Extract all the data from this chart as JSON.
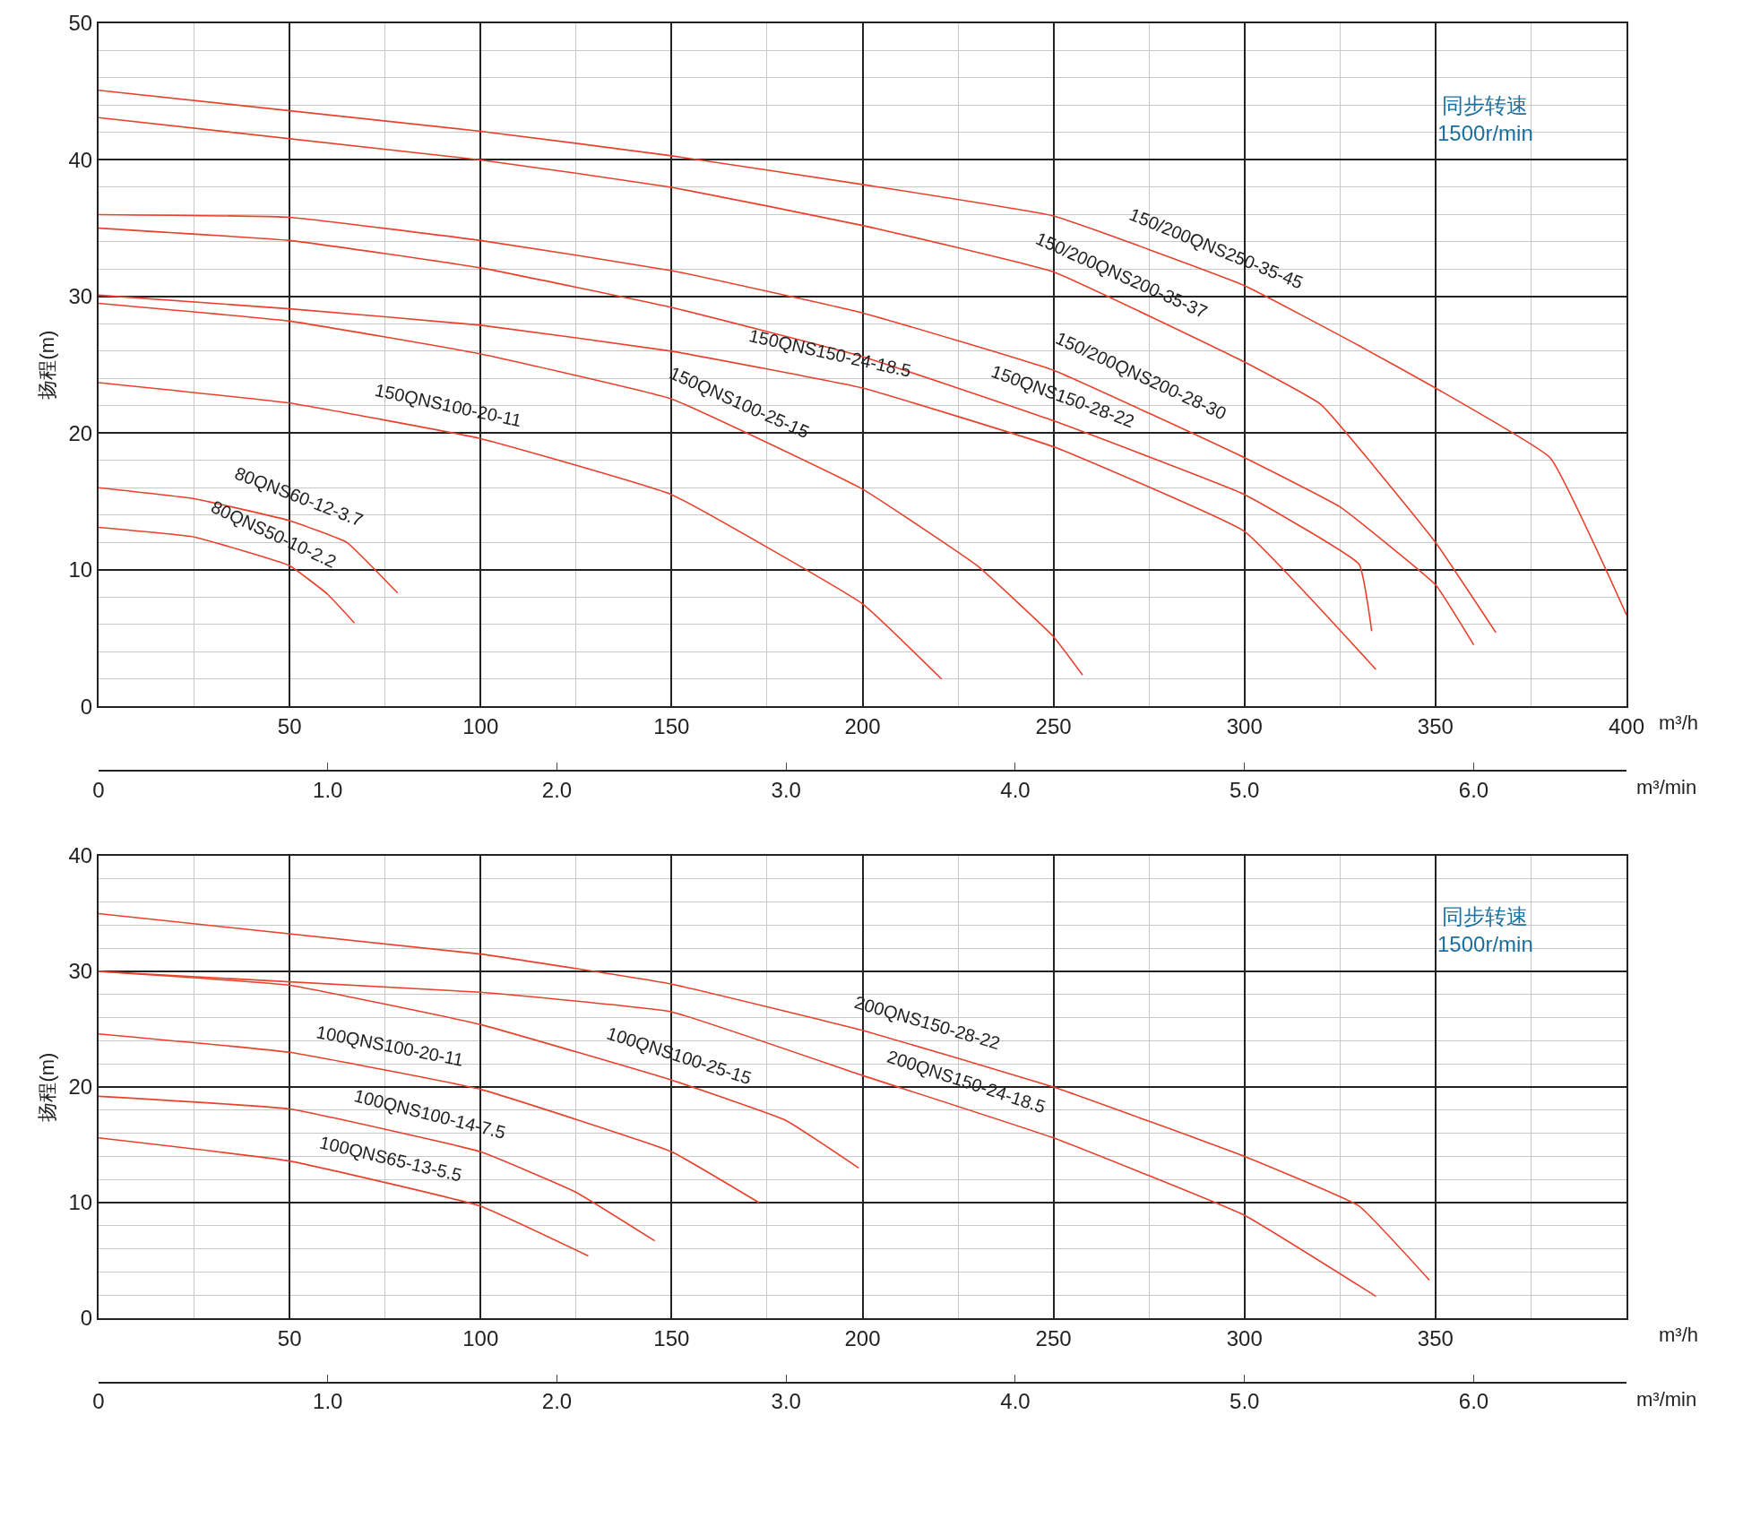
{
  "chart_data": [
    {
      "type": "line",
      "xlabel": "m³/h",
      "x2label": "m³/min",
      "ylabel": "扬程(m)",
      "xlim": [
        0,
        400
      ],
      "xticks": [
        50,
        100,
        150,
        200,
        250,
        300,
        350,
        400
      ],
      "x2lim": [
        0,
        6.6667
      ],
      "x2ticks": [
        0,
        {
          "value": 1,
          "label": "1.0"
        },
        {
          "value": 2,
          "label": "2.0"
        },
        {
          "value": 3,
          "label": "3.0"
        },
        {
          "value": 4,
          "label": "4.0"
        },
        {
          "value": 5,
          "label": "5.0"
        },
        {
          "value": 6,
          "label": "6.0"
        }
      ],
      "ylim": [
        0,
        50
      ],
      "yticks": [
        0,
        10,
        20,
        30,
        40,
        50
      ],
      "grid": true,
      "marker": "none",
      "line_style": "solid",
      "series": [
        {
          "color": "#e8412c",
          "x": [
            0,
            100,
            150,
            200,
            250,
            300,
            330,
            350,
            380,
            400
          ],
          "values": [
            45.1,
            42.1,
            40.3,
            38.2,
            35.9,
            30.8,
            26.4,
            23.3,
            18.2,
            6.7
          ]
        },
        {
          "color": "#e8412c",
          "x": [
            0,
            100,
            150,
            200,
            250,
            300,
            320,
            350,
            365.8
          ],
          "values": [
            43.1,
            40.0,
            38.0,
            35.2,
            31.8,
            25.2,
            22.1,
            12.0,
            5.4
          ]
        },
        {
          "color": "#e8412c",
          "x": [
            0,
            50,
            100,
            150,
            200,
            250,
            300,
            325,
            350,
            360
          ],
          "values": [
            36.0,
            35.8,
            34.1,
            31.9,
            28.8,
            24.6,
            18.2,
            14.6,
            8.9,
            4.5
          ]
        },
        {
          "color": "#e8412c",
          "x": [
            0,
            50,
            100,
            150,
            200,
            250,
            300,
            330,
            333.3
          ],
          "values": [
            35.0,
            34.1,
            32.1,
            29.2,
            25.6,
            20.9,
            15.5,
            10.4,
            5.5
          ]
        },
        {
          "color": "#e8412c",
          "x": [
            0,
            50,
            100,
            150,
            200,
            250,
            300,
            334.4
          ],
          "values": [
            30.1,
            29.1,
            27.9,
            26.0,
            23.3,
            19.0,
            12.8,
            2.7
          ]
        },
        {
          "color": "#e8412c",
          "x": [
            0,
            50,
            100,
            150,
            200,
            230,
            250,
            257.6
          ],
          "values": [
            29.5,
            28.2,
            25.8,
            22.5,
            15.9,
            10.3,
            5.1,
            2.3
          ]
        },
        {
          "color": "#e8412c",
          "x": [
            0,
            50,
            100,
            150,
            200,
            220.7
          ],
          "values": [
            23.7,
            22.2,
            19.6,
            15.5,
            7.5,
            2.0
          ]
        },
        {
          "color": "#e8412c",
          "x": [
            0,
            25,
            50,
            65,
            78.3
          ],
          "values": [
            16.0,
            15.2,
            13.6,
            12.0,
            8.3
          ]
        },
        {
          "color": "#e8412c",
          "x": [
            0,
            25,
            50,
            60,
            67
          ],
          "values": [
            13.1,
            12.4,
            10.3,
            8.2,
            6.1
          ]
        }
      ],
      "annotations": [
        {
          "text": "150/200QNS250-35-45",
          "x": 290,
          "y": 31.8
        },
        {
          "text": "150/200QNS200-35-37",
          "x": 265,
          "y": 29.8
        },
        {
          "text": "150/200QNS200-28-30",
          "x": 270,
          "y": 22.5
        },
        {
          "text": "150QNS150-28-22",
          "x": 250,
          "y": 20.9
        },
        {
          "text": "150QNS150-24-18.5",
          "x": 190,
          "y": 24.0
        },
        {
          "text": "150QNS100-25-15",
          "x": 165,
          "y": 20.5
        },
        {
          "text": "150QNS100-20-11",
          "x": 90,
          "y": 20.2
        },
        {
          "text": "80QNS60-12-3.7",
          "x": 50,
          "y": 13.6
        },
        {
          "text": "80QNS50-10-2.2",
          "x": 43,
          "y": 10.9
        },
        "同步转速\n1500r/min"
      ]
    },
    {
      "type": "line",
      "xlabel": "m³/h",
      "x2label": "m³/min",
      "ylabel": "扬程(m)",
      "xlim": [
        0,
        400
      ],
      "xticks": [
        50,
        100,
        150,
        200,
        250,
        300,
        350
      ],
      "x2lim": [
        0,
        6.6667
      ],
      "x2ticks": [
        0,
        {
          "value": 1,
          "label": "1.0"
        },
        {
          "value": 2,
          "label": "2.0"
        },
        {
          "value": 3,
          "label": "3.0"
        },
        {
          "value": 4,
          "label": "4.0"
        },
        {
          "value": 5,
          "label": "5.0"
        },
        {
          "value": 6,
          "label": "6.0"
        }
      ],
      "ylim": [
        0,
        40
      ],
      "yticks": [
        0,
        10,
        20,
        30,
        40
      ],
      "grid": true,
      "marker": "none",
      "line_style": "solid",
      "series": [
        {
          "color": "#e8412c",
          "x": [
            0,
            100,
            150,
            200,
            250,
            300,
            330,
            348.4
          ],
          "values": [
            35.0,
            31.5,
            28.9,
            24.9,
            20.0,
            14.0,
            9.7,
            3.3
          ]
        },
        {
          "color": "#e8412c",
          "x": [
            0,
            100,
            150,
            200,
            250,
            300,
            334.4
          ],
          "values": [
            30.0,
            28.2,
            26.5,
            21.0,
            15.6,
            8.9,
            1.9
          ]
        },
        {
          "color": "#e8412c",
          "x": [
            0,
            50,
            100,
            150,
            180,
            199
          ],
          "values": [
            30.0,
            28.8,
            25.4,
            20.6,
            17.1,
            13.0
          ]
        },
        {
          "color": "#e8412c",
          "x": [
            0,
            50,
            100,
            150,
            172.9
          ],
          "values": [
            24.6,
            23.0,
            19.8,
            14.4,
            10.0
          ]
        },
        {
          "color": "#e8412c",
          "x": [
            0,
            50,
            100,
            125,
            145.6
          ],
          "values": [
            19.2,
            18.1,
            14.4,
            10.9,
            6.7
          ]
        },
        {
          "color": "#e8412c",
          "x": [
            0,
            50,
            100,
            128.2
          ],
          "values": [
            15.6,
            13.6,
            9.7,
            5.4
          ]
        }
      ],
      "annotations": [
        {
          "text": "200QNS150-28-22",
          "x": 215,
          "y": 23.43
        },
        {
          "text": "200QNS150-24-18.5",
          "x": 225,
          "y": 18.3
        },
        {
          "text": "100QNS100-25-15",
          "x": 150,
          "y": 20.6
        },
        {
          "text": "100QNS100-20-11",
          "x": 75,
          "y": 21.4
        },
        {
          "text": "100QNS100-14-7.5",
          "x": 85,
          "y": 15.5
        },
        {
          "text": "100QNS65-13-5.5",
          "x": 75,
          "y": 11.65
        },
        "同步转速\n1500r/min"
      ]
    }
  ]
}
